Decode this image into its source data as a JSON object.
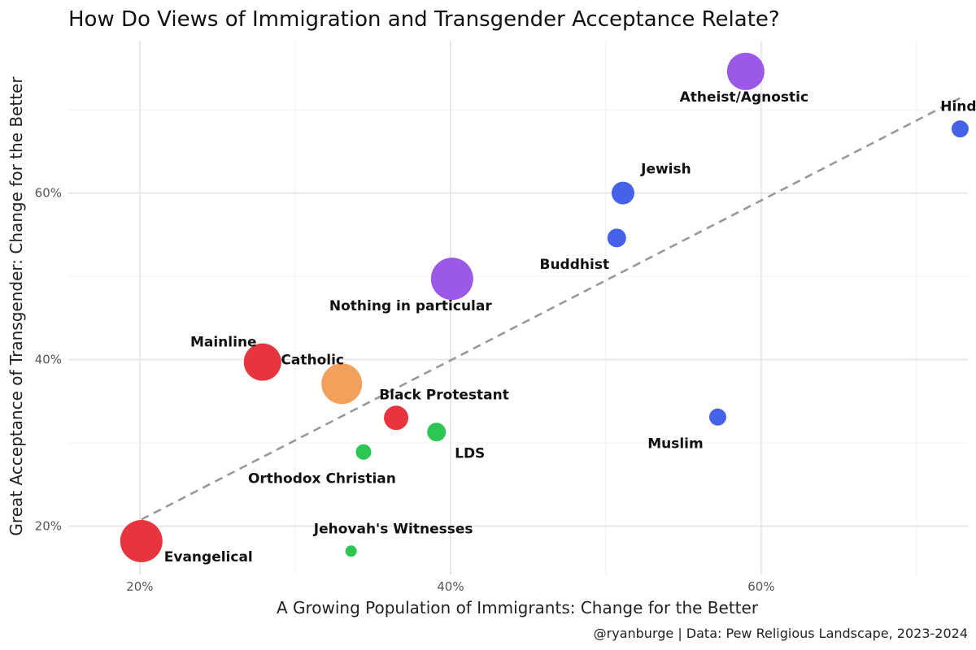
{
  "chart_data": {
    "type": "scatter",
    "title": "How Do Views of Immigration and Transgender Acceptance Relate?",
    "xlabel": "A Growing Population of Immigrants: Change for the Better",
    "ylabel": "Great Acceptance of Transgender: Change for the Better",
    "caption": "@ryanburge | Data: Pew Religious Landscape, 2023-2024",
    "xlim": [
      15.4,
      73.3
    ],
    "ylim": [
      14.2,
      78.3
    ],
    "x_ticks": [
      {
        "value": 20,
        "label": "20%"
      },
      {
        "value": 40,
        "label": "40%"
      },
      {
        "value": 60,
        "label": "60%"
      }
    ],
    "y_ticks": [
      {
        "value": 20,
        "label": "20%"
      },
      {
        "value": 40,
        "label": "40%"
      },
      {
        "value": 60,
        "label": "60%"
      }
    ],
    "grid": true,
    "trendline": {
      "style": "dashed",
      "color": "#999999",
      "x": [
        20.1,
        72.8
      ],
      "y": [
        20.8,
        71.4
      ]
    },
    "colors": {
      "protestant": "#E8343F",
      "catholic": "#F2A05B",
      "other_christian": "#2DC653",
      "other_faith": "#4562E8",
      "nones": "#9C59E8"
    },
    "points": [
      {
        "name": "Evangelical",
        "x": 20.1,
        "y": 18.2,
        "size": 52,
        "color": "#E8343F",
        "label_dx": 28,
        "label_dy": 25,
        "anchor": "start"
      },
      {
        "name": "Mainline",
        "x": 27.9,
        "y": 39.7,
        "size": 46,
        "color": "#E8343F",
        "label_dx": -48,
        "label_dy": -19,
        "anchor": "middle"
      },
      {
        "name": "Catholic",
        "x": 33.0,
        "y": 37.1,
        "size": 50,
        "color": "#F2A05B",
        "label_dx": -36,
        "label_dy": -24,
        "anchor": "middle"
      },
      {
        "name": "Black Protestant",
        "x": 36.5,
        "y": 33.0,
        "size": 30,
        "color": "#E8343F",
        "label_dx": 59,
        "label_dy": -23,
        "anchor": "middle"
      },
      {
        "name": "LDS",
        "x": 39.1,
        "y": 31.3,
        "size": 23,
        "color": "#2DC653",
        "label_dx": 41,
        "label_dy": 32,
        "anchor": "middle"
      },
      {
        "name": "Orthodox Christian",
        "x": 34.4,
        "y": 28.9,
        "size": 19,
        "color": "#2DC653",
        "label_dx": -51,
        "label_dy": 38,
        "anchor": "middle"
      },
      {
        "name": "Jehovah's Witnesses",
        "x": 33.6,
        "y": 17.0,
        "size": 14,
        "color": "#2DC653",
        "label_dx": 52,
        "label_dy": -22,
        "anchor": "middle"
      },
      {
        "name": "Nothing in particular",
        "x": 40.1,
        "y": 49.7,
        "size": 52,
        "color": "#9C59E8",
        "label_dx": -51,
        "label_dy": 39,
        "anchor": "middle"
      },
      {
        "name": "Atheist/Agnostic",
        "x": 59.0,
        "y": 74.6,
        "size": 46,
        "color": "#9C59E8",
        "label_dx": -2,
        "label_dy": 37,
        "anchor": "middle"
      },
      {
        "name": "Jewish",
        "x": 51.1,
        "y": 60.0,
        "size": 28,
        "color": "#4562E8",
        "label_dx": 53,
        "label_dy": -24,
        "anchor": "middle"
      },
      {
        "name": "Buddhist",
        "x": 50.7,
        "y": 54.6,
        "size": 23,
        "color": "#4562E8",
        "label_dx": -52,
        "label_dy": 38,
        "anchor": "middle"
      },
      {
        "name": "Hindu",
        "x": 72.8,
        "y": 67.7,
        "size": 21,
        "color": "#4562E8",
        "label_dx": 4,
        "label_dy": -22,
        "anchor": "middle"
      },
      {
        "name": "Muslim",
        "x": 57.2,
        "y": 33.1,
        "size": 21,
        "color": "#4562E8",
        "label_dx": -52,
        "label_dy": 38,
        "anchor": "middle"
      }
    ]
  }
}
